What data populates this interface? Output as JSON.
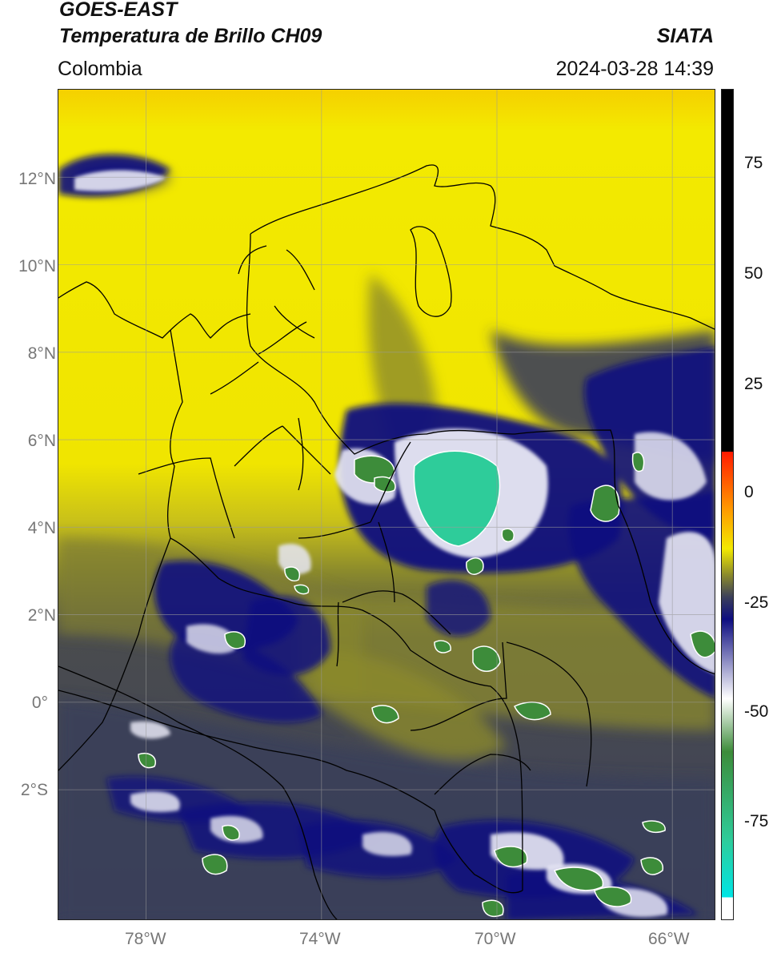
{
  "header": {
    "satellite": "GOES-EAST",
    "product": "Temperatura de Brillo CH09",
    "source": "SIATA",
    "region": "Colombia",
    "timestamp": "2024-03-28 14:39"
  },
  "map": {
    "lon_range": [
      -80,
      -65
    ],
    "lat_range": [
      -5,
      14
    ],
    "lon_ticks": [
      {
        "value": -78,
        "label": "78°W"
      },
      {
        "value": -74,
        "label": "74°W"
      },
      {
        "value": -70,
        "label": "70°W"
      },
      {
        "value": -66,
        "label": "66°W"
      }
    ],
    "lat_ticks": [
      {
        "value": 12,
        "label": "12°N"
      },
      {
        "value": 10,
        "label": "10°N"
      },
      {
        "value": 8,
        "label": "8°N"
      },
      {
        "value": 6,
        "label": "6°N"
      },
      {
        "value": 4,
        "label": "4°N"
      },
      {
        "value": 2,
        "label": "2°N"
      },
      {
        "value": 0,
        "label": "0°"
      },
      {
        "value": -2,
        "label": "2°S"
      }
    ],
    "grid": true
  },
  "colorbar": {
    "range": [
      -98,
      90
    ],
    "ticks": [
      {
        "value": 75,
        "label": "75"
      },
      {
        "value": 50,
        "label": "50"
      },
      {
        "value": 25,
        "label": "25"
      },
      {
        "value": 0,
        "label": "0"
      },
      {
        "value": -25,
        "label": "-25"
      },
      {
        "value": -50,
        "label": "-50"
      },
      {
        "value": -75,
        "label": "-75"
      }
    ],
    "colors": {
      "black": "#000000",
      "red": "#ff1a00",
      "orange": "#ff9900",
      "yellow": "#f3ea00",
      "olive": "#8b8a2c",
      "slate": "#3b3f5a",
      "navy": "#0d0d80",
      "white": "#ffffff",
      "green": "#3d8c3a",
      "teal": "#2ecc9a",
      "cyan": "#00e5e5"
    }
  }
}
